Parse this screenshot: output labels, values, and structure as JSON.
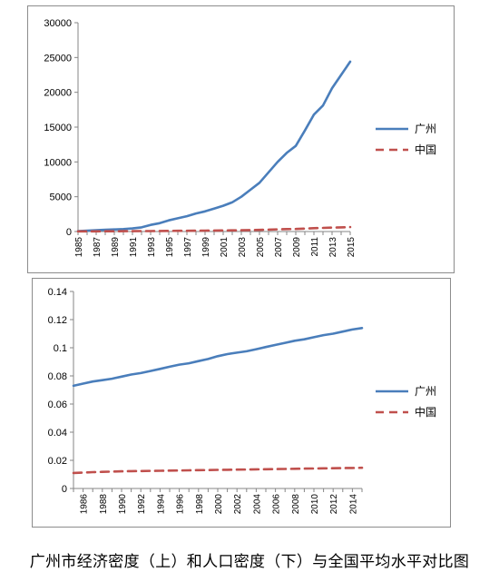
{
  "caption": "广州市经济密度（上）和人口密度（下）与全国平均水平对比图",
  "colors": {
    "guangzhou": "#4a7ebb",
    "china": "#c0504d",
    "axis": "#868686",
    "text": "#000000"
  },
  "chart_data": [
    {
      "type": "line",
      "x": [
        1985,
        1986,
        1987,
        1988,
        1989,
        1990,
        1991,
        1992,
        1993,
        1994,
        1995,
        1996,
        1997,
        1998,
        1999,
        2000,
        2001,
        2002,
        2003,
        2004,
        2005,
        2006,
        2007,
        2008,
        2009,
        2010,
        2011,
        2012,
        2013,
        2014,
        2015
      ],
      "xticks": [
        "1985",
        "1987",
        "1989",
        "1991",
        "1993",
        "1995",
        "1997",
        "1999",
        "2001",
        "2003",
        "2005",
        "2007",
        "2009",
        "2011",
        "2013",
        "2015"
      ],
      "yticks": [
        "0",
        "5000",
        "10000",
        "15000",
        "20000",
        "25000",
        "30000"
      ],
      "ylim": [
        0,
        30000
      ],
      "legend_position": "right",
      "grid": false,
      "series": [
        {
          "name": "广州",
          "style": "solid",
          "values": [
            60,
            120,
            180,
            250,
            300,
            350,
            450,
            600,
            950,
            1200,
            1600,
            1900,
            2200,
            2600,
            2900,
            3300,
            3700,
            4200,
            5000,
            6000,
            7000,
            8500,
            10000,
            11300,
            12300,
            14500,
            16800,
            18100,
            20600,
            22500,
            24400
          ]
        },
        {
          "name": "中国",
          "style": "dashed",
          "values": [
            20,
            25,
            30,
            40,
            45,
            50,
            55,
            60,
            70,
            80,
            90,
            100,
            110,
            120,
            130,
            140,
            150,
            165,
            185,
            210,
            240,
            270,
            310,
            350,
            370,
            420,
            480,
            520,
            560,
            600,
            640
          ]
        }
      ]
    },
    {
      "type": "line",
      "x": [
        1985,
        1986,
        1987,
        1988,
        1989,
        1990,
        1991,
        1992,
        1993,
        1994,
        1995,
        1996,
        1997,
        1998,
        1999,
        2000,
        2001,
        2002,
        2003,
        2004,
        2005,
        2006,
        2007,
        2008,
        2009,
        2010,
        2011,
        2012,
        2013,
        2014,
        2015
      ],
      "xticks": [
        "1986",
        "1988",
        "1990",
        "1992",
        "1994",
        "1996",
        "1998",
        "2000",
        "2002",
        "2004",
        "2006",
        "2008",
        "2010",
        "2012",
        "2014"
      ],
      "yticks": [
        "0",
        "0.02",
        "0.04",
        "0.06",
        "0.08",
        "0.1",
        "0.12",
        "0.14"
      ],
      "ylim": [
        0,
        0.14
      ],
      "legend_position": "right",
      "grid": false,
      "series": [
        {
          "name": "广州",
          "style": "solid",
          "values": [
            0.073,
            0.0745,
            0.076,
            0.077,
            0.078,
            0.0795,
            0.081,
            0.082,
            0.0835,
            0.085,
            0.0865,
            0.088,
            0.089,
            0.0905,
            0.092,
            0.094,
            0.0955,
            0.0965,
            0.0975,
            0.099,
            0.1005,
            0.102,
            0.1035,
            0.105,
            0.106,
            0.1075,
            0.109,
            0.11,
            0.1115,
            0.113,
            0.114
          ]
        },
        {
          "name": "中国",
          "style": "dashed",
          "values": [
            0.011,
            0.0113,
            0.0116,
            0.0118,
            0.012,
            0.0122,
            0.0123,
            0.0124,
            0.0125,
            0.0126,
            0.0127,
            0.0128,
            0.0129,
            0.013,
            0.0131,
            0.0132,
            0.0133,
            0.0134,
            0.0135,
            0.0136,
            0.0137,
            0.0138,
            0.0139,
            0.014,
            0.0141,
            0.0142,
            0.0143,
            0.0144,
            0.0145,
            0.0146,
            0.0147
          ]
        }
      ]
    }
  ]
}
